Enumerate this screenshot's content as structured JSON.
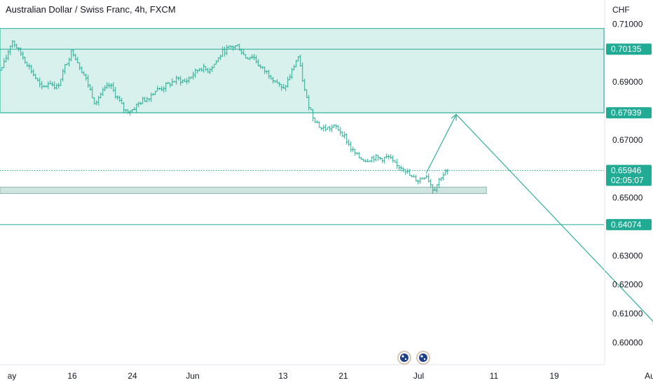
{
  "chart_data": {
    "type": "candlestick",
    "title": "Australian Dollar / Swiss Franc, 4h, FXCM",
    "currency": "CHF",
    "colors": {
      "line": "#22ab94",
      "zone_fill": "#d9f1ec",
      "support_fill": "#cfe3df",
      "support_stroke": "#8fb8b0",
      "badge": "#22ab94",
      "badge_text": "#ffffff",
      "axis_text": "#131722"
    },
    "y_axis": {
      "ylim": [
        0.5955,
        0.7135
      ],
      "ticks": [
        "0.71000",
        "0.69000",
        "0.67000",
        "0.65000",
        "0.63000",
        "0.62000",
        "0.61000",
        "0.60000"
      ],
      "tick_values": [
        0.71,
        0.69,
        0.67,
        0.65,
        0.63,
        0.62,
        0.61,
        0.6
      ]
    },
    "x_axis": {
      "labels": [
        "ay",
        "16",
        "24",
        "Jun",
        "13",
        "21",
        "Jul",
        "11",
        "19",
        "Aug"
      ],
      "label_dates": [
        "2023-05-08",
        "2023-05-16",
        "2023-05-24",
        "2023-06-01",
        "2023-06-13",
        "2023-06-21",
        "2023-07-01",
        "2023-07-11",
        "2023-07-19",
        "2023-08-01"
      ]
    },
    "price_levels": [
      {
        "value": 0.70135,
        "label": "0.70135",
        "style": "solid"
      },
      {
        "value": 0.67939,
        "label": "0.67939",
        "style": "solid"
      },
      {
        "value": 0.64074,
        "label": "0.64074",
        "style": "solid"
      },
      {
        "value": 0.65946,
        "label": "0.65946",
        "sublabel": "02:05:07",
        "style": "dotted"
      }
    ],
    "resistance_zone": {
      "top": 0.7085,
      "bottom": 0.67939
    },
    "support_zone": {
      "top": 0.6537,
      "bottom": 0.6515,
      "date_end": "2023-07-10"
    },
    "projection_path": [
      {
        "date": "2023-07-02",
        "value": 0.6585
      },
      {
        "date": "2023-07-06",
        "value": 0.6788
      },
      {
        "date": "2023-08-03",
        "value": 0.6022
      }
    ],
    "candle_path": [
      [
        "2023-05-05",
        0.686
      ],
      [
        "2023-05-06",
        0.692
      ],
      [
        "2023-05-07",
        0.6965
      ],
      [
        "2023-05-08",
        0.7045
      ],
      [
        "2023-05-09",
        0.7005
      ],
      [
        "2023-05-10",
        0.6965
      ],
      [
        "2023-05-11",
        0.692
      ],
      [
        "2023-05-12",
        0.6875
      ],
      [
        "2023-05-13",
        0.69
      ],
      [
        "2023-05-14",
        0.688
      ],
      [
        "2023-05-15",
        0.695
      ],
      [
        "2023-05-16",
        0.701
      ],
      [
        "2023-05-17",
        0.6955
      ],
      [
        "2023-05-18",
        0.69
      ],
      [
        "2023-05-19",
        0.683
      ],
      [
        "2023-05-20",
        0.6865
      ],
      [
        "2023-05-21",
        0.689
      ],
      [
        "2023-05-22",
        0.6845
      ],
      [
        "2023-05-23",
        0.68
      ],
      [
        "2023-05-24",
        0.6805
      ],
      [
        "2023-05-25",
        0.683
      ],
      [
        "2023-05-26",
        0.6845
      ],
      [
        "2023-05-27",
        0.687
      ],
      [
        "2023-05-28",
        0.688
      ],
      [
        "2023-05-29",
        0.6895
      ],
      [
        "2023-05-30",
        0.691
      ],
      [
        "2023-05-31",
        0.69
      ],
      [
        "2023-06-01",
        0.6925
      ],
      [
        "2023-06-02",
        0.695
      ],
      [
        "2023-06-03",
        0.694
      ],
      [
        "2023-06-04",
        0.6965
      ],
      [
        "2023-06-05",
        0.7005
      ],
      [
        "2023-06-06",
        0.702
      ],
      [
        "2023-06-07",
        0.7025
      ],
      [
        "2023-06-08",
        0.6985
      ],
      [
        "2023-06-09",
        0.699
      ],
      [
        "2023-06-10",
        0.695
      ],
      [
        "2023-06-11",
        0.693
      ],
      [
        "2023-06-12",
        0.6905
      ],
      [
        "2023-06-13",
        0.687
      ],
      [
        "2023-06-14",
        0.6925
      ],
      [
        "2023-06-15",
        0.699
      ],
      [
        "2023-06-16",
        0.685
      ],
      [
        "2023-06-17",
        0.678
      ],
      [
        "2023-06-18",
        0.674
      ],
      [
        "2023-06-19",
        0.674
      ],
      [
        "2023-06-20",
        0.6745
      ],
      [
        "2023-06-21",
        0.672
      ],
      [
        "2023-06-22",
        0.667
      ],
      [
        "2023-06-23",
        0.664
      ],
      [
        "2023-06-24",
        0.663
      ],
      [
        "2023-06-25",
        0.664
      ],
      [
        "2023-06-26",
        0.6635
      ],
      [
        "2023-06-27",
        0.664
      ],
      [
        "2023-06-28",
        0.661
      ],
      [
        "2023-06-29",
        0.6605
      ],
      [
        "2023-06-30",
        0.657
      ],
      [
        "2023-07-01",
        0.656
      ],
      [
        "2023-07-02",
        0.658
      ],
      [
        "2023-07-03",
        0.6525
      ],
      [
        "2023-07-04",
        0.6575
      ],
      [
        "2023-07-05",
        0.6595
      ]
    ]
  }
}
